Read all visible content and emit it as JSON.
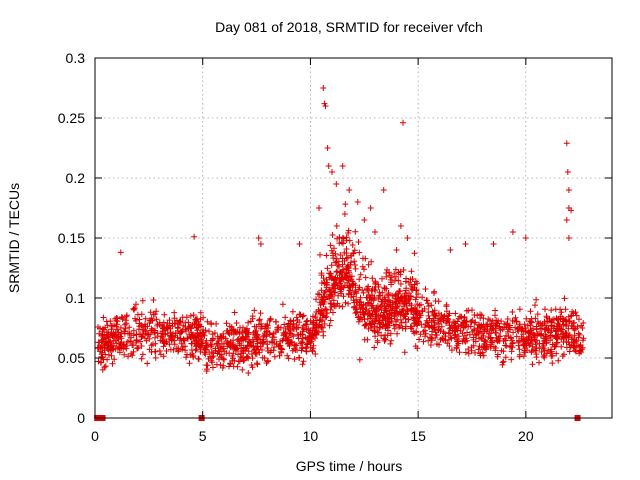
{
  "chart_data": {
    "type": "scatter",
    "title": "Day 081 of 2018, SRMTID for receiver vfch",
    "xlabel": "GPS time / hours",
    "ylabel": "SRMTID / TECUs",
    "xlim": [
      0,
      24
    ],
    "ylim": [
      0,
      0.3
    ],
    "xticks": [
      0,
      5,
      10,
      15,
      20
    ],
    "xtick_labels": [
      "0",
      "5",
      "10",
      "15",
      "20"
    ],
    "yticks": [
      0,
      0.05,
      0.1,
      0.15,
      0.2,
      0.25,
      0.3
    ],
    "ytick_labels": [
      "0",
      "0.05",
      "0.1",
      "0.15",
      "0.2",
      "0.25",
      "0.3"
    ],
    "grid": true,
    "marker": "+",
    "color": "#e00000",
    "series": [
      {
        "name": "SRMTID",
        "note": "Dense scatter of ~1900 plus markers; trend values below (hours, TECU) define the generated point cloud.",
        "trend": [
          [
            0.0,
            0.06
          ],
          [
            1.0,
            0.068
          ],
          [
            2.0,
            0.07
          ],
          [
            3.0,
            0.072
          ],
          [
            4.0,
            0.07
          ],
          [
            5.0,
            0.065
          ],
          [
            6.0,
            0.062
          ],
          [
            7.0,
            0.063
          ],
          [
            8.0,
            0.066
          ],
          [
            9.0,
            0.068
          ],
          [
            10.0,
            0.068
          ],
          [
            10.5,
            0.085
          ],
          [
            11.0,
            0.11
          ],
          [
            11.5,
            0.12
          ],
          [
            12.0,
            0.105
          ],
          [
            12.5,
            0.09
          ],
          [
            13.0,
            0.085
          ],
          [
            13.5,
            0.088
          ],
          [
            14.0,
            0.095
          ],
          [
            14.5,
            0.092
          ],
          [
            15.0,
            0.085
          ],
          [
            16.0,
            0.078
          ],
          [
            17.0,
            0.074
          ],
          [
            18.0,
            0.07
          ],
          [
            19.0,
            0.068
          ],
          [
            20.0,
            0.07
          ],
          [
            21.0,
            0.068
          ],
          [
            22.0,
            0.072
          ],
          [
            22.6,
            0.065
          ]
        ],
        "highlights": [
          [
            10.6,
            0.275
          ],
          [
            10.65,
            0.262
          ],
          [
            10.7,
            0.26
          ],
          [
            10.8,
            0.225
          ],
          [
            10.85,
            0.21
          ],
          [
            11.0,
            0.205
          ],
          [
            11.2,
            0.195
          ],
          [
            11.5,
            0.21
          ],
          [
            11.8,
            0.19
          ],
          [
            12.2,
            0.18
          ],
          [
            12.8,
            0.175
          ],
          [
            13.4,
            0.19
          ],
          [
            14.3,
            0.246
          ],
          [
            14.2,
            0.16
          ],
          [
            14.5,
            0.15
          ],
          [
            10.4,
            0.175
          ],
          [
            11.6,
            0.17
          ],
          [
            12.5,
            0.165
          ],
          [
            13.0,
            0.155
          ],
          [
            14.0,
            0.14
          ],
          [
            1.2,
            0.138
          ],
          [
            4.6,
            0.151
          ],
          [
            7.6,
            0.15
          ],
          [
            7.7,
            0.145
          ],
          [
            9.5,
            0.145
          ],
          [
            21.9,
            0.229
          ],
          [
            21.95,
            0.205
          ],
          [
            22.0,
            0.19
          ],
          [
            22.0,
            0.175
          ],
          [
            22.1,
            0.173
          ],
          [
            21.9,
            0.165
          ],
          [
            22.0,
            0.15
          ],
          [
            19.4,
            0.155
          ],
          [
            20.0,
            0.15
          ],
          [
            18.5,
            0.145
          ],
          [
            17.2,
            0.145
          ],
          [
            16.5,
            0.14
          ]
        ],
        "zero_points": [
          0.1,
          0.35,
          4.95,
          22.4
        ]
      }
    ]
  }
}
